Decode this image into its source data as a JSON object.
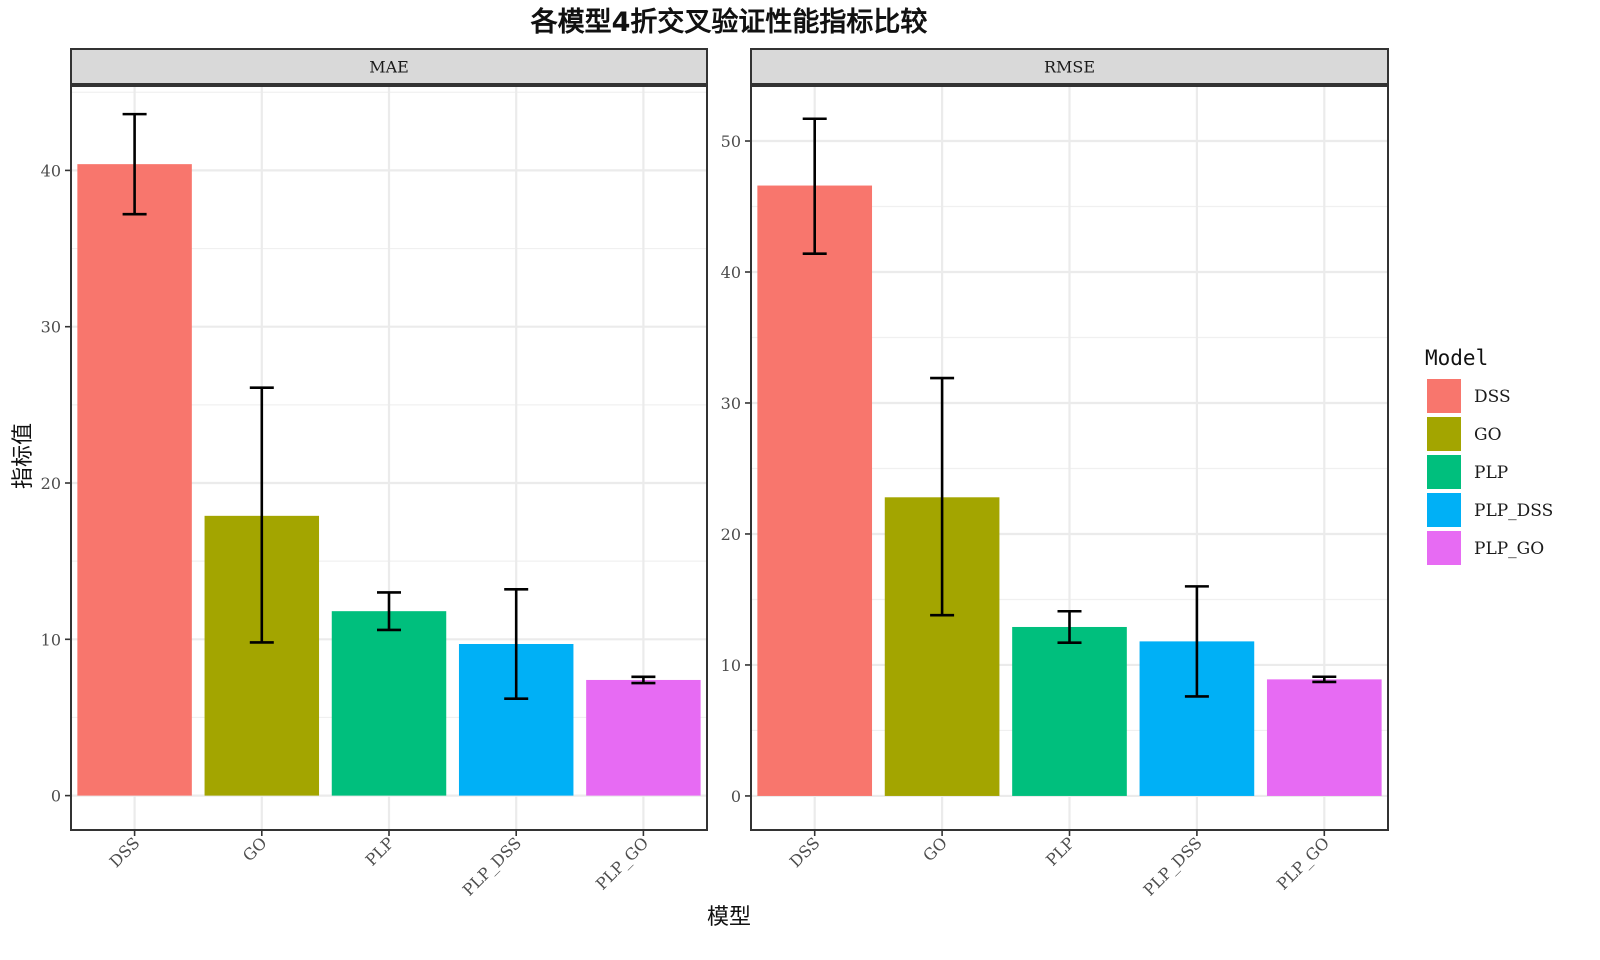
{
  "chart_data": {
    "type": "bar",
    "title": "各模型4折交叉验证性能指标比较",
    "xlabel": "模型",
    "ylabel": "指标值",
    "categories": [
      "DSS",
      "GO",
      "PLP",
      "PLP_DSS",
      "PLP_GO"
    ],
    "colors": {
      "DSS": "#F8766D",
      "GO": "#A3A500",
      "PLP": "#00BF7D",
      "PLP_DSS": "#00B0F6",
      "PLP_GO": "#E76BF3"
    },
    "legend": {
      "title": "Model",
      "position": "right",
      "entries": [
        "DSS",
        "GO",
        "PLP",
        "PLP_DSS",
        "PLP_GO"
      ]
    },
    "grid": true,
    "panels": [
      {
        "name": "MAE",
        "ylim": [
          -2.2,
          45.4
        ],
        "yticks": [
          0,
          10,
          20,
          30,
          40
        ],
        "values": [
          40.4,
          17.9,
          11.8,
          9.7,
          7.4
        ],
        "error_low": [
          37.2,
          9.8,
          10.6,
          6.2,
          7.2
        ],
        "error_high": [
          43.6,
          26.1,
          13.0,
          13.2,
          7.6
        ]
      },
      {
        "name": "RMSE",
        "ylim": [
          -2.6,
          54.2
        ],
        "yticks": [
          0,
          10,
          20,
          30,
          40,
          50
        ],
        "values": [
          46.6,
          22.8,
          12.9,
          11.8,
          8.9
        ],
        "error_low": [
          41.4,
          13.8,
          11.7,
          7.6,
          8.7
        ],
        "error_high": [
          51.7,
          31.9,
          14.1,
          16.0,
          9.1
        ]
      }
    ]
  }
}
